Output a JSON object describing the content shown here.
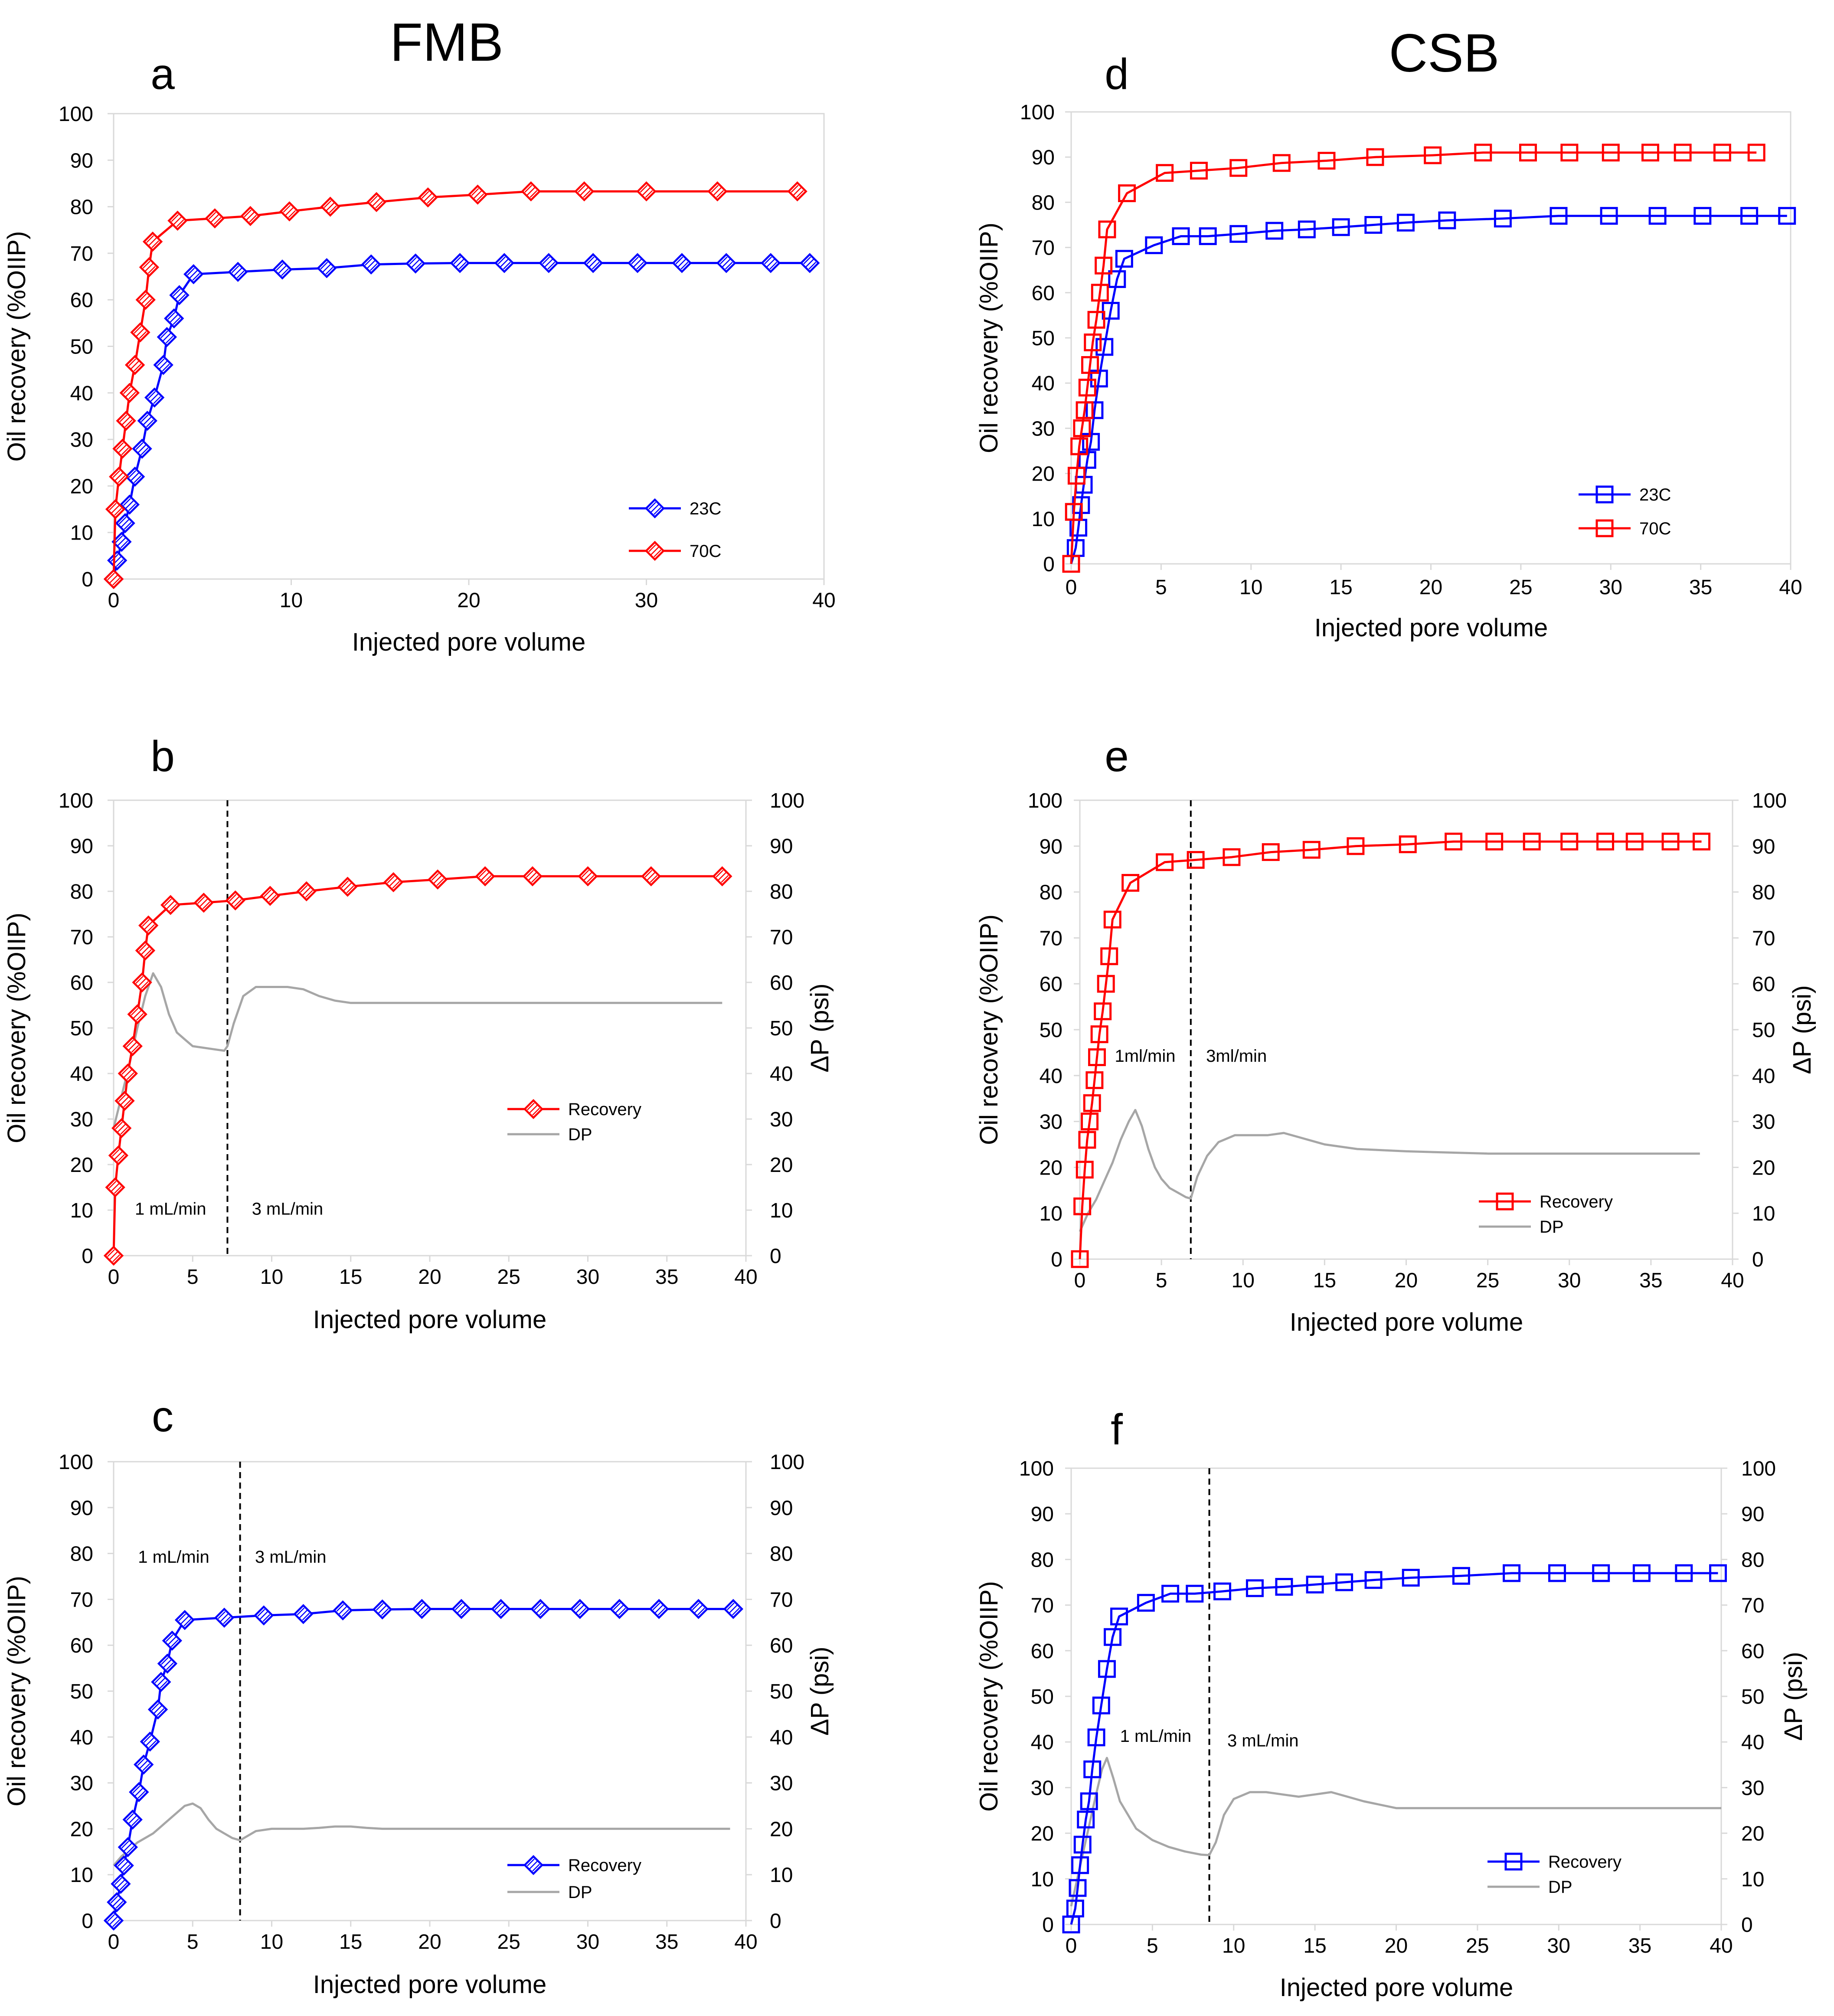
{
  "figure": {
    "group_titles": {
      "left": "FMB",
      "right": "CSB"
    },
    "colors": {
      "red": "#ff0000",
      "blue": "#0000ff",
      "gray": "#a6a6a6",
      "axis": "#d9d9d9",
      "black": "#000000"
    }
  },
  "chart_data": [
    {
      "id": "a",
      "panel_label": "a",
      "type": "line",
      "marker": "diamond",
      "xlabel": "Injected pore volume",
      "ylabel": "Oil recovery (%OIIP)",
      "xlim": [
        0,
        40
      ],
      "ylim": [
        0,
        100
      ],
      "xticks": [
        "0",
        "10",
        "20",
        "30",
        "40"
      ],
      "yticks": [
        "0",
        "10",
        "20",
        "30",
        "40",
        "50",
        "60",
        "70",
        "80",
        "90",
        "100"
      ],
      "legend_position": "lower-right",
      "series": [
        {
          "name": "23C",
          "color": "#0000ff",
          "x": [
            0,
            0.2,
            0.45,
            0.65,
            0.9,
            1.2,
            1.6,
            1.9,
            2.3,
            2.8,
            3.0,
            3.4,
            3.7,
            4.5,
            7,
            9.5,
            12,
            14.5,
            17,
            19.5,
            22,
            24.5,
            27,
            29.5,
            32,
            34.5,
            37,
            39.2
          ],
          "y": [
            0,
            4,
            8,
            12,
            16,
            22,
            28,
            34,
            39,
            46,
            52,
            56,
            61,
            65.5,
            66,
            66.5,
            66.8,
            67.6,
            67.8,
            67.9,
            67.9,
            67.9,
            67.9,
            67.9,
            67.9,
            67.9,
            67.9,
            67.9
          ]
        },
        {
          "name": "70C",
          "color": "#ff0000",
          "x": [
            0,
            0.1,
            0.3,
            0.5,
            0.7,
            0.9,
            1.2,
            1.5,
            1.8,
            2.0,
            2.2,
            3.6,
            5.7,
            7.7,
            9.9,
            12.2,
            14.8,
            17.7,
            20.5,
            23.5,
            26.5,
            30,
            34,
            38.5
          ],
          "y": [
            0,
            15,
            22,
            28,
            34,
            40,
            46,
            53,
            60,
            67,
            72.5,
            77,
            77.5,
            78,
            79,
            80,
            81,
            82,
            82.6,
            83.3,
            83.3,
            83.3,
            83.3,
            83.3
          ]
        }
      ]
    },
    {
      "id": "b",
      "panel_label": "b",
      "type": "line",
      "marker": "diamond",
      "xlabel": "Injected pore volume",
      "ylabel": "Oil recovery (%OIIP)",
      "y2label": "ΔP (psi)",
      "xlim": [
        0,
        40
      ],
      "ylim": [
        0,
        100
      ],
      "y2lim": [
        0,
        100
      ],
      "xticks": [
        "0",
        "5",
        "10",
        "15",
        "20",
        "25",
        "30",
        "35",
        "40"
      ],
      "yticks": [
        "0",
        "10",
        "20",
        "30",
        "40",
        "50",
        "60",
        "70",
        "80",
        "90",
        "100"
      ],
      "divider_x": 7.2,
      "annotations": [
        {
          "text": "1 mL/min",
          "x": 3.6,
          "y": 9
        },
        {
          "text": "3 mL/min",
          "x": 11,
          "y": 9
        }
      ],
      "legend_position": "lower-right",
      "series": [
        {
          "name": "Recovery",
          "color": "#ff0000",
          "x": [
            0,
            0.1,
            0.3,
            0.5,
            0.7,
            0.9,
            1.2,
            1.5,
            1.8,
            2.0,
            2.2,
            3.6,
            5.7,
            7.7,
            9.9,
            12.2,
            14.8,
            17.7,
            20.5,
            23.5,
            26.5,
            30,
            34,
            38.5
          ],
          "y": [
            0,
            15,
            22,
            28,
            34,
            40,
            46,
            53,
            60,
            67,
            72.5,
            77,
            77.5,
            78,
            79,
            80,
            81,
            82,
            82.6,
            83.3,
            83.3,
            83.3,
            83.3,
            83.3
          ]
        },
        {
          "name": "DP",
          "color": "#a6a6a6",
          "axis": "y2",
          "x": [
            0,
            0.5,
            1.0,
            1.5,
            2.0,
            2.5,
            3.0,
            3.5,
            4.0,
            4.5,
            5.0,
            6.0,
            7.0,
            7.2,
            7.6,
            8.2,
            9.0,
            10.0,
            11.0,
            12.0,
            13.0,
            14.0,
            15.0,
            20.0,
            25.0,
            30.0,
            35.0,
            38.5
          ],
          "y": [
            28,
            35,
            42,
            50,
            57,
            62,
            59,
            53,
            49,
            47.5,
            46,
            45.5,
            45,
            46,
            51,
            57,
            59,
            59,
            59,
            58.5,
            57,
            56,
            55.5,
            55.5,
            55.5,
            55.5,
            55.5,
            55.5
          ]
        }
      ]
    },
    {
      "id": "c",
      "panel_label": "c",
      "type": "line",
      "marker": "diamond",
      "xlabel": "Injected pore volume",
      "ylabel": "Oil recovery (%OIIP)",
      "y2label": "ΔP (psi)",
      "xlim": [
        0,
        40
      ],
      "ylim": [
        0,
        100
      ],
      "y2lim": [
        0,
        100
      ],
      "xticks": [
        "0",
        "5",
        "10",
        "15",
        "20",
        "25",
        "30",
        "35",
        "40"
      ],
      "yticks": [
        "0",
        "10",
        "20",
        "30",
        "40",
        "50",
        "60",
        "70",
        "80",
        "90",
        "100"
      ],
      "divider_x": 8.0,
      "annotations": [
        {
          "text": "1 mL/min",
          "x": 3.8,
          "y": 78
        },
        {
          "text": "3 mL/min",
          "x": 11.2,
          "y": 78
        }
      ],
      "legend_position": "lower-right",
      "series": [
        {
          "name": "Recovery",
          "color": "#0000ff",
          "x": [
            0,
            0.2,
            0.45,
            0.65,
            0.9,
            1.2,
            1.6,
            1.9,
            2.3,
            2.8,
            3.0,
            3.4,
            3.7,
            4.5,
            7,
            9.5,
            12,
            14.5,
            17,
            19.5,
            22,
            24.5,
            27,
            29.5,
            32,
            34.5,
            37,
            39.2
          ],
          "y": [
            0,
            4,
            8,
            12,
            16,
            22,
            28,
            34,
            39,
            46,
            52,
            56,
            61,
            65.5,
            66,
            66.5,
            66.8,
            67.6,
            67.8,
            67.9,
            67.9,
            67.9,
            67.9,
            67.9,
            67.9,
            67.9,
            67.9,
            67.9
          ]
        },
        {
          "name": "DP",
          "color": "#a6a6a6",
          "axis": "y2",
          "x": [
            0,
            0.5,
            1.0,
            1.5,
            2.0,
            2.5,
            3.0,
            3.5,
            4.0,
            4.5,
            5.0,
            5.5,
            6.0,
            6.5,
            7.0,
            7.5,
            8.0,
            8.5,
            9.0,
            10,
            11,
            12,
            13,
            14,
            15,
            16,
            17,
            20,
            25,
            30,
            35,
            39
          ],
          "y": [
            12,
            14,
            15.5,
            17,
            18,
            19,
            20.5,
            22,
            23.5,
            25,
            25.5,
            24.5,
            22,
            20,
            19,
            18,
            17.5,
            18.5,
            19.5,
            20,
            20,
            20,
            20.2,
            20.5,
            20.5,
            20.2,
            20,
            20,
            20,
            20,
            20,
            20
          ]
        }
      ]
    },
    {
      "id": "d",
      "panel_label": "d",
      "type": "line",
      "marker": "square",
      "xlabel": "Injected pore volume",
      "ylabel": "Oil recovery (%OIIP)",
      "xlim": [
        0,
        40
      ],
      "ylim": [
        0,
        100
      ],
      "xticks": [
        "0",
        "5",
        "10",
        "15",
        "20",
        "25",
        "30",
        "35",
        "40"
      ],
      "yticks": [
        "0",
        "10",
        "20",
        "30",
        "40",
        "50",
        "60",
        "70",
        "80",
        "90",
        "100"
      ],
      "legend_position": "lower-right",
      "series": [
        {
          "name": "23C",
          "color": "#0000ff",
          "x": [
            0,
            0.25,
            0.4,
            0.55,
            0.7,
            0.9,
            1.1,
            1.3,
            1.55,
            1.85,
            2.2,
            2.55,
            2.95,
            4.6,
            6.1,
            7.6,
            9.3,
            11.3,
            13.1,
            15.0,
            16.8,
            18.6,
            20.9,
            24.0,
            27.1,
            29.9,
            32.6,
            35.1,
            37.7,
            39.8
          ],
          "y": [
            0,
            3.5,
            8,
            13,
            17.5,
            23,
            27,
            34,
            41,
            48,
            56,
            63,
            67.5,
            70.5,
            72.5,
            72.5,
            73,
            73.7,
            74,
            74.5,
            75,
            75.5,
            76,
            76.4,
            77,
            77,
            77,
            77,
            77,
            77
          ]
        },
        {
          "name": "70C",
          "color": "#ff0000",
          "x": [
            0,
            0.15,
            0.3,
            0.45,
            0.6,
            0.75,
            0.9,
            1.05,
            1.2,
            1.4,
            1.6,
            1.8,
            2.0,
            3.1,
            5.2,
            7.1,
            9.3,
            11.7,
            14.2,
            16.9,
            20.1,
            22.9,
            25.4,
            27.7,
            30.0,
            32.2,
            34.0,
            36.2,
            38.1
          ],
          "y": [
            0,
            11.5,
            19.5,
            26,
            30,
            34,
            39,
            44,
            49,
            54,
            60,
            66,
            74,
            82,
            86.5,
            87,
            87.6,
            88.7,
            89.2,
            90,
            90.4,
            91,
            91,
            91,
            91,
            91,
            91,
            91,
            91
          ]
        }
      ]
    },
    {
      "id": "e",
      "panel_label": "e",
      "type": "line",
      "marker": "square",
      "xlabel": "Injected pore volume",
      "ylabel": "Oil recovery (%OIIP)",
      "y2label": "ΔP (psi)",
      "xlim": [
        0,
        40
      ],
      "ylim": [
        0,
        100
      ],
      "y2lim": [
        0,
        100
      ],
      "xticks": [
        "0",
        "5",
        "10",
        "15",
        "20",
        "25",
        "30",
        "35",
        "40"
      ],
      "yticks": [
        "0",
        "10",
        "20",
        "30",
        "40",
        "50",
        "60",
        "70",
        "80",
        "90",
        "100"
      ],
      "divider_x": 6.8,
      "annotations": [
        {
          "text": "1ml/min",
          "x": 4.0,
          "y": 43
        },
        {
          "text": "3ml/min",
          "x": 9.6,
          "y": 43
        }
      ],
      "legend_position": "lower-right",
      "series": [
        {
          "name": "Recovery",
          "color": "#ff0000",
          "x": [
            0,
            0.15,
            0.3,
            0.45,
            0.6,
            0.75,
            0.9,
            1.05,
            1.2,
            1.4,
            1.6,
            1.8,
            2.0,
            3.1,
            5.2,
            7.1,
            9.3,
            11.7,
            14.2,
            16.9,
            20.1,
            22.9,
            25.4,
            27.7,
            30.0,
            32.2,
            34.0,
            36.2,
            38.1
          ],
          "y": [
            0,
            11.5,
            19.5,
            26,
            30,
            34,
            39,
            44,
            49,
            54,
            60,
            66,
            74,
            82,
            86.5,
            87,
            87.6,
            88.7,
            89.2,
            90,
            90.4,
            91,
            91,
            91,
            91,
            91,
            91,
            91,
            91
          ]
        },
        {
          "name": "DP",
          "color": "#a6a6a6",
          "axis": "y2",
          "x": [
            0,
            0.5,
            1.0,
            1.5,
            2.0,
            2.5,
            3.0,
            3.4,
            3.8,
            4.2,
            4.6,
            5.0,
            5.5,
            6.0,
            6.5,
            6.8,
            7.2,
            7.8,
            8.5,
            9.5,
            10.5,
            11.5,
            12.5,
            13.5,
            15.0,
            17.0,
            20.0,
            25.0,
            30.0,
            35.0,
            38.0
          ],
          "y": [
            6,
            10,
            13,
            17,
            21,
            26,
            30,
            32.5,
            29,
            24,
            20,
            17.5,
            15.5,
            14.5,
            13.5,
            13.2,
            18,
            22.5,
            25.5,
            27,
            27,
            27,
            27.5,
            26.5,
            25,
            24,
            23.5,
            23,
            23,
            23,
            23
          ]
        }
      ]
    },
    {
      "id": "f",
      "panel_label": "f",
      "type": "line",
      "marker": "square",
      "xlabel": "Injected pore volume",
      "ylabel": "Oil recovery (%OIIP)",
      "y2label": "ΔP (psi)",
      "xlim": [
        0,
        40
      ],
      "ylim": [
        0,
        100
      ],
      "y2lim": [
        0,
        100
      ],
      "xticks": [
        "0",
        "5",
        "10",
        "15",
        "20",
        "25",
        "30",
        "35",
        "40"
      ],
      "yticks": [
        "0",
        "10",
        "20",
        "30",
        "40",
        "50",
        "60",
        "70",
        "80",
        "90",
        "100"
      ],
      "divider_x": 8.5,
      "annotations": [
        {
          "text": "1 mL/min",
          "x": 5.2,
          "y": 40
        },
        {
          "text": "3 mL/min",
          "x": 11.8,
          "y": 39
        }
      ],
      "legend_position": "lower-right",
      "series": [
        {
          "name": "Recovery",
          "color": "#0000ff",
          "x": [
            0,
            0.25,
            0.4,
            0.55,
            0.7,
            0.9,
            1.1,
            1.3,
            1.55,
            1.85,
            2.2,
            2.55,
            2.95,
            4.6,
            6.1,
            7.6,
            9.3,
            11.3,
            13.1,
            15.0,
            16.8,
            18.6,
            20.9,
            24.0,
            27.1,
            29.9,
            32.6,
            35.1,
            37.7,
            39.8
          ],
          "y": [
            0,
            3.5,
            8,
            13,
            17.5,
            23,
            27,
            34,
            41,
            48,
            56,
            63,
            67.5,
            70.5,
            72.5,
            72.5,
            73,
            73.7,
            74,
            74.5,
            75,
            75.5,
            76,
            76.4,
            77,
            77,
            77,
            77,
            77,
            77
          ]
        },
        {
          "name": "DP",
          "color": "#a6a6a6",
          "axis": "y2",
          "x": [
            0,
            0.5,
            1.0,
            1.5,
            1.9,
            2.2,
            2.6,
            3.0,
            3.5,
            4.0,
            5.0,
            6.0,
            7.0,
            8.0,
            8.5,
            8.9,
            9.4,
            10.0,
            11.0,
            12.0,
            13.0,
            14.0,
            15.0,
            16.0,
            17.0,
            18.0,
            20.0,
            25.0,
            30.0,
            35.0,
            40.0
          ],
          "y": [
            4,
            12,
            20,
            28,
            34,
            36.5,
            32,
            27,
            24,
            21,
            18.5,
            17,
            16,
            15.3,
            15.2,
            18,
            24,
            27.5,
            29,
            29,
            28.5,
            28,
            28.5,
            29,
            28,
            27,
            25.5,
            25.5,
            25.5,
            25.5,
            25.5
          ]
        }
      ]
    }
  ]
}
